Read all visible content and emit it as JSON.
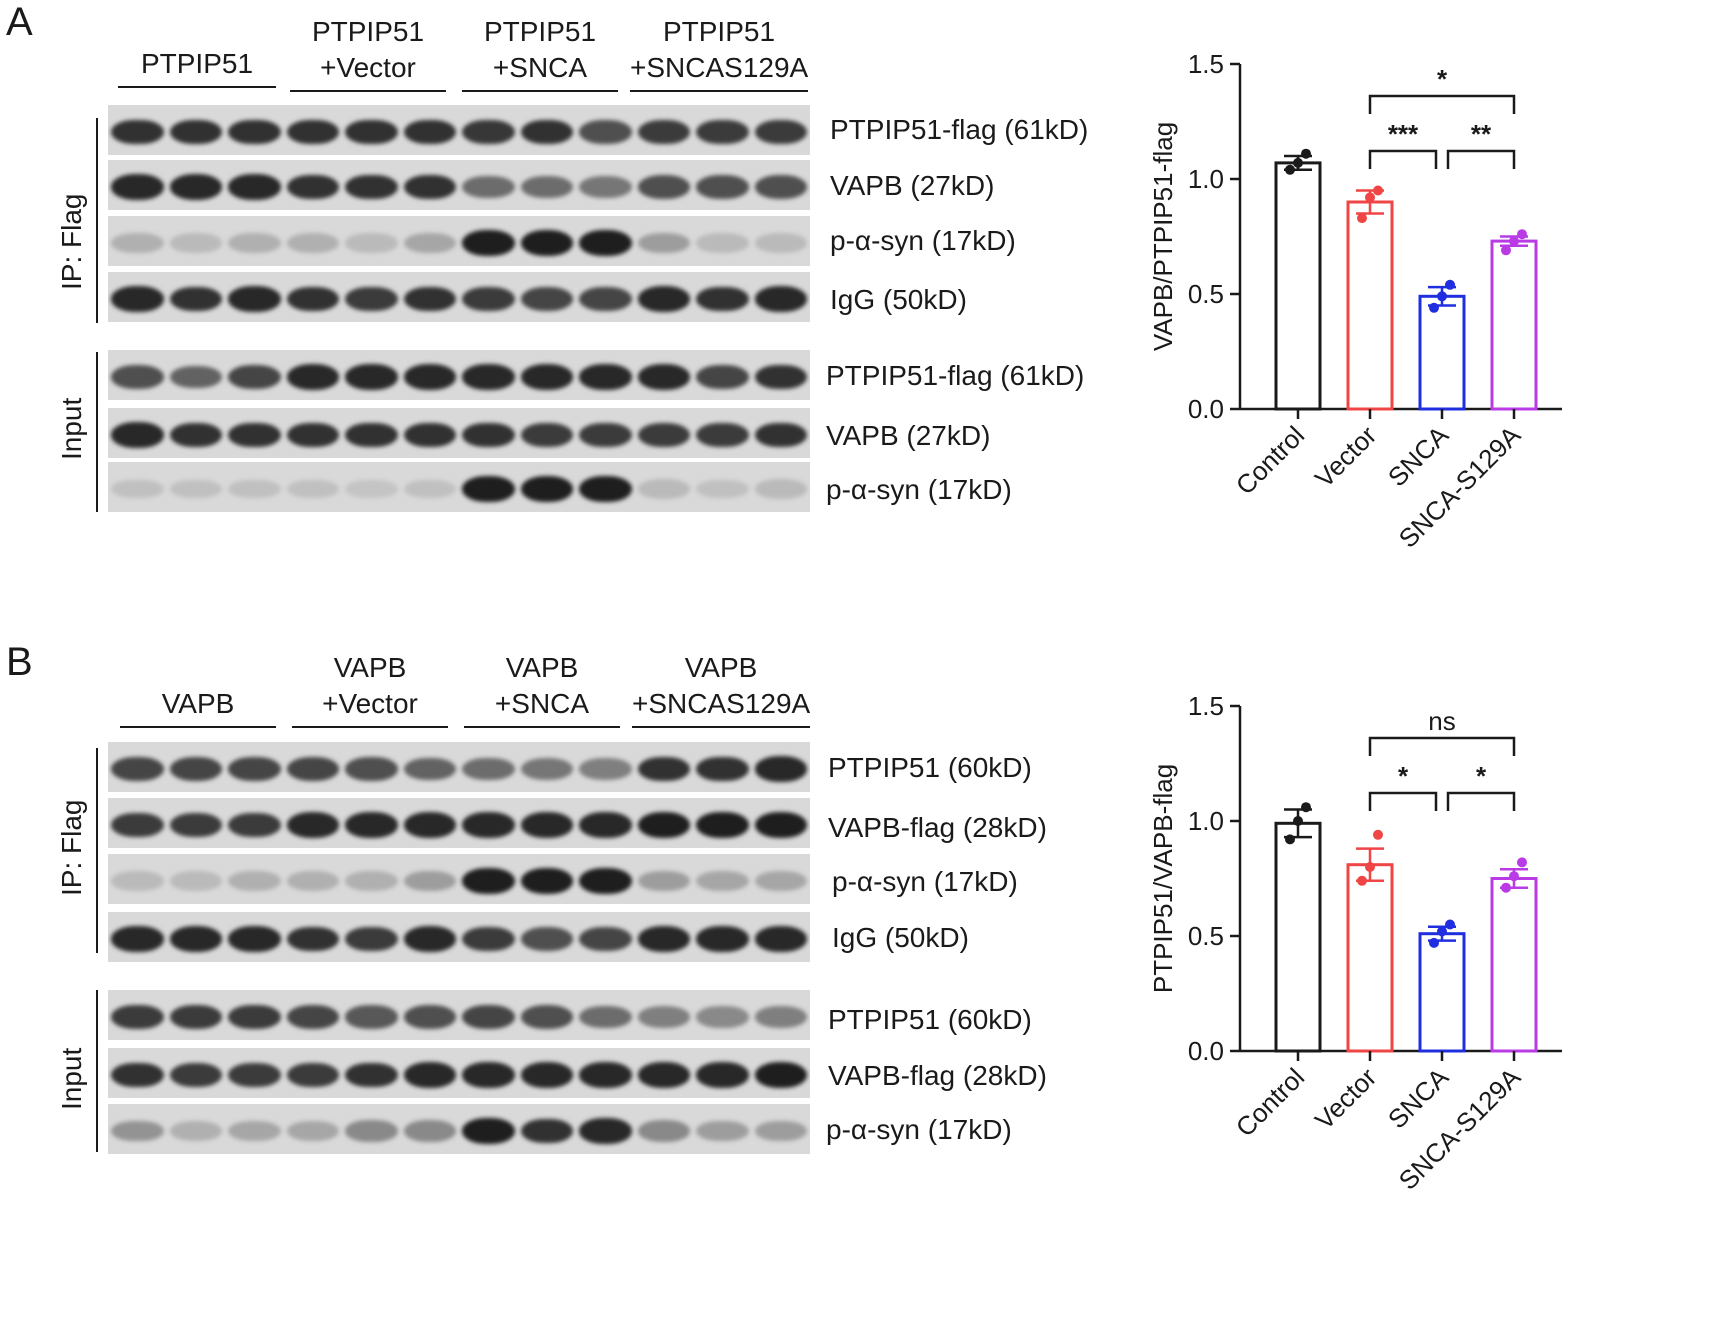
{
  "panels": [
    {
      "letter": "A",
      "groups": [
        {
          "lines": [
            "PTPIP51"
          ]
        },
        {
          "lines": [
            "PTPIP51",
            "+Vector"
          ]
        },
        {
          "lines": [
            "PTPIP51",
            "+SNCA"
          ]
        },
        {
          "lines": [
            "PTPIP51",
            "+SNCAS129A"
          ]
        }
      ],
      "sections": [
        "IP: Flag",
        "Input"
      ],
      "blots": [
        {
          "label": "PTPIP51-flag (61kD)",
          "intensity": [
            0.85,
            0.85,
            0.85,
            0.85,
            0.85,
            0.85,
            0.82,
            0.85,
            0.7,
            0.8,
            0.8,
            0.8
          ]
        },
        {
          "label": "VAPB (27kD)",
          "intensity": [
            0.9,
            0.9,
            0.9,
            0.85,
            0.85,
            0.85,
            0.55,
            0.55,
            0.5,
            0.7,
            0.7,
            0.7
          ]
        },
        {
          "label": "p-α-syn (17kD)",
          "intensity": [
            0.2,
            0.15,
            0.2,
            0.2,
            0.15,
            0.25,
            0.95,
            0.95,
            0.95,
            0.3,
            0.15,
            0.15
          ]
        },
        {
          "label": "IgG (50kD)",
          "intensity": [
            0.9,
            0.85,
            0.9,
            0.85,
            0.8,
            0.85,
            0.8,
            0.75,
            0.75,
            0.9,
            0.85,
            0.9
          ]
        },
        {
          "label": "PTPIP51-flag (61kD)",
          "intensity": [
            0.7,
            0.6,
            0.75,
            0.9,
            0.9,
            0.9,
            0.9,
            0.9,
            0.9,
            0.9,
            0.75,
            0.85
          ]
        },
        {
          "label": "VAPB (27kD)",
          "intensity": [
            0.9,
            0.85,
            0.85,
            0.85,
            0.85,
            0.85,
            0.85,
            0.8,
            0.8,
            0.8,
            0.8,
            0.85
          ]
        },
        {
          "label": "p-α-syn (17kD)",
          "intensity": [
            0.12,
            0.12,
            0.12,
            0.12,
            0.1,
            0.12,
            0.95,
            0.95,
            0.95,
            0.15,
            0.12,
            0.15
          ]
        }
      ]
    },
    {
      "letter": "B",
      "groups": [
        {
          "lines": [
            "VAPB"
          ]
        },
        {
          "lines": [
            "VAPB",
            "+Vector"
          ]
        },
        {
          "lines": [
            "VAPB",
            "+SNCA"
          ]
        },
        {
          "lines": [
            "VAPB",
            "+SNCAS129A"
          ]
        }
      ],
      "sections": [
        "IP: Flag",
        "Input"
      ],
      "blots": [
        {
          "label": "PTPIP51 (60kD)",
          "intensity": [
            0.75,
            0.75,
            0.75,
            0.75,
            0.7,
            0.6,
            0.55,
            0.5,
            0.45,
            0.85,
            0.85,
            0.9
          ]
        },
        {
          "label": "VAPB-flag (28kD)",
          "intensity": [
            0.8,
            0.8,
            0.8,
            0.9,
            0.9,
            0.9,
            0.9,
            0.9,
            0.9,
            0.95,
            0.95,
            0.95
          ]
        },
        {
          "label": "p-α-syn (17kD)",
          "intensity": [
            0.15,
            0.15,
            0.2,
            0.2,
            0.2,
            0.3,
            0.95,
            0.95,
            0.95,
            0.3,
            0.25,
            0.25
          ]
        },
        {
          "label": "IgG (50kD)",
          "intensity": [
            0.9,
            0.9,
            0.9,
            0.85,
            0.8,
            0.9,
            0.8,
            0.7,
            0.75,
            0.9,
            0.9,
            0.9
          ]
        },
        {
          "label": "PTPIP51 (60kD)",
          "intensity": [
            0.8,
            0.8,
            0.8,
            0.75,
            0.65,
            0.7,
            0.75,
            0.7,
            0.55,
            0.45,
            0.4,
            0.45
          ]
        },
        {
          "label": "VAPB-flag (28kD)",
          "intensity": [
            0.85,
            0.8,
            0.8,
            0.8,
            0.85,
            0.9,
            0.9,
            0.9,
            0.9,
            0.9,
            0.9,
            0.95
          ]
        },
        {
          "label": "p-α-syn (17kD)",
          "intensity": [
            0.35,
            0.2,
            0.25,
            0.25,
            0.4,
            0.4,
            0.95,
            0.85,
            0.9,
            0.4,
            0.3,
            0.3
          ]
        }
      ]
    }
  ],
  "chart_data": [
    {
      "type": "bar",
      "categories": [
        "Control",
        "Vector",
        "SNCA",
        "SNCA-S129A"
      ],
      "values": [
        1.07,
        0.9,
        0.49,
        0.73
      ],
      "sem": [
        0.03,
        0.05,
        0.04,
        0.02
      ],
      "points": [
        [
          1.04,
          1.07,
          1.11
        ],
        [
          0.83,
          0.92,
          0.95
        ],
        [
          0.44,
          0.49,
          0.54
        ],
        [
          0.69,
          0.73,
          0.76
        ]
      ],
      "colors": [
        "#1a1a1a",
        "#f04545",
        "#1f2fe0",
        "#b93be6"
      ],
      "ylabel": "VAPB/PTPIP51-flag",
      "ylim": [
        0,
        1.5
      ],
      "yticks": [
        "0.0",
        "0.5",
        "1.0",
        "1.5"
      ],
      "significance": [
        {
          "from": 1,
          "to": 3,
          "label": "*"
        },
        {
          "from": 1,
          "to": 2,
          "label": "***"
        },
        {
          "from": 2,
          "to": 3,
          "label": "**"
        }
      ]
    },
    {
      "type": "bar",
      "categories": [
        "Control",
        "Vector",
        "SNCA",
        "SNCA-S129A"
      ],
      "values": [
        0.99,
        0.81,
        0.51,
        0.75
      ],
      "sem": [
        0.06,
        0.07,
        0.03,
        0.04
      ],
      "points": [
        [
          0.92,
          1.0,
          1.06
        ],
        [
          0.74,
          0.8,
          0.94
        ],
        [
          0.47,
          0.52,
          0.55
        ],
        [
          0.71,
          0.76,
          0.82
        ]
      ],
      "colors": [
        "#1a1a1a",
        "#f04545",
        "#1f2fe0",
        "#b93be6"
      ],
      "ylabel": "PTPIP51/VAPB-flag",
      "ylim": [
        0,
        1.5
      ],
      "yticks": [
        "0.0",
        "0.5",
        "1.0",
        "1.5"
      ],
      "significance": [
        {
          "from": 1,
          "to": 3,
          "label": "ns"
        },
        {
          "from": 1,
          "to": 2,
          "label": "*"
        },
        {
          "from": 2,
          "to": 3,
          "label": "*"
        }
      ]
    }
  ]
}
